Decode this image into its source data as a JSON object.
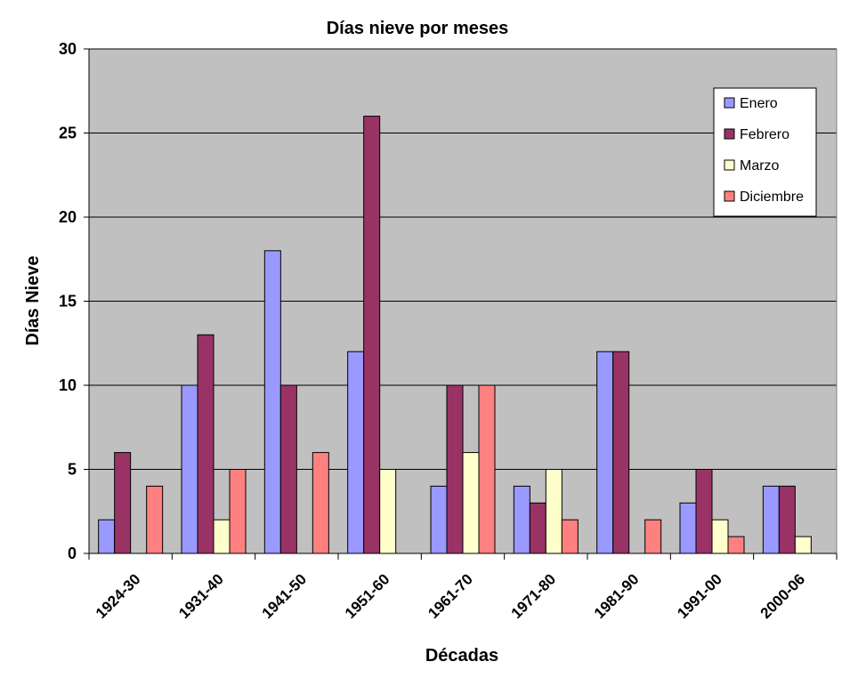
{
  "chart_data": {
    "type": "bar",
    "title": "Días nieve por meses",
    "xlabel": "Décadas",
    "ylabel": "Días Nieve",
    "ylim": [
      0,
      30
    ],
    "yticks": [
      0,
      5,
      10,
      15,
      20,
      25,
      30
    ],
    "grid": true,
    "legend_position": "top-right",
    "plot_background": "#c0c0c0",
    "categories": [
      "1924-30",
      "1931-40",
      "1941-50",
      "1951-60",
      "1961-70",
      "1971-80",
      "1981-90",
      "1991-00",
      "2000-06"
    ],
    "series": [
      {
        "name": "Enero",
        "color": "#9999ff",
        "values": [
          2,
          10,
          18,
          12,
          4,
          4,
          12,
          3,
          4
        ]
      },
      {
        "name": "Febrero",
        "color": "#993366",
        "values": [
          6,
          13,
          10,
          26,
          10,
          3,
          12,
          5,
          4
        ]
      },
      {
        "name": "Marzo",
        "color": "#ffffcc",
        "values": [
          0,
          2,
          0,
          5,
          6,
          5,
          0,
          2,
          1
        ]
      },
      {
        "name": "Diciembre",
        "color": "#ff8080",
        "values": [
          4,
          5,
          6,
          0,
          10,
          2,
          2,
          1,
          0
        ]
      }
    ]
  }
}
